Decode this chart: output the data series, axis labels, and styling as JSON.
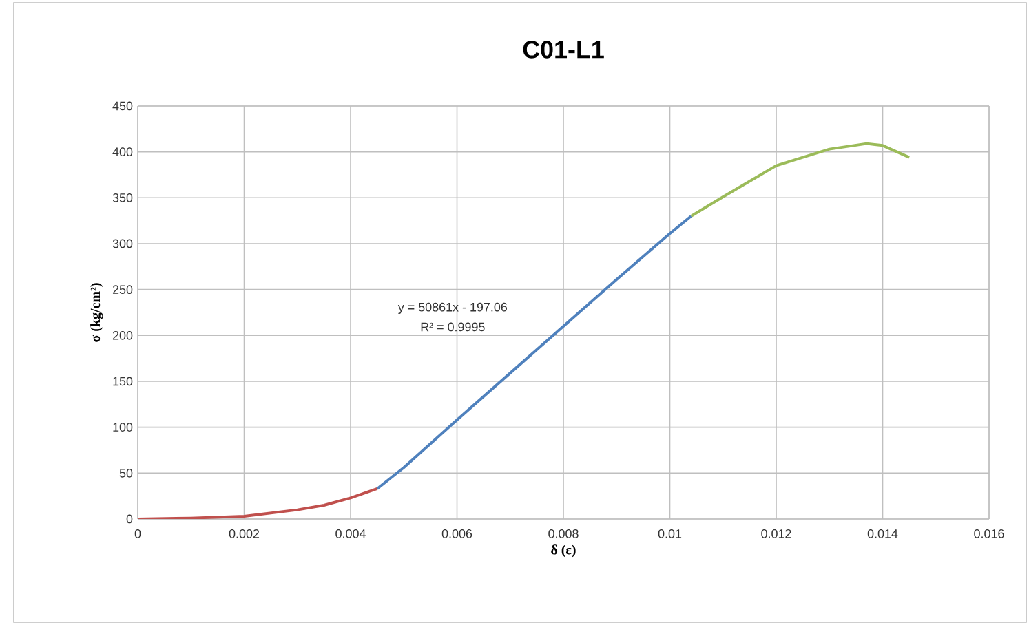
{
  "chart_data": {
    "type": "line",
    "title": "C01-L1",
    "xlabel": "δ (ε)",
    "ylabel": "σ (kg/cm²)",
    "annotations": [
      "y = 50861x - 197.06",
      "R² = 0.9995"
    ],
    "xlim": [
      0,
      0.016
    ],
    "ylim": [
      0,
      450
    ],
    "xticks": [
      0,
      0.002,
      0.004,
      0.006,
      0.008,
      0.01,
      0.012,
      0.014,
      0.016
    ],
    "yticks": [
      0,
      50,
      100,
      150,
      200,
      250,
      300,
      350,
      400,
      450
    ],
    "grid": true,
    "marker": "none",
    "line_style": "solid",
    "series": [
      {
        "color": "#c0504d",
        "x": [
          0,
          0.001,
          0.002,
          0.003,
          0.0035,
          0.004,
          0.0045
        ],
        "values": [
          0,
          1,
          3,
          10,
          15,
          23,
          33
        ]
      },
      {
        "color": "#4f81bd",
        "x": [
          0.0045,
          0.005,
          0.006,
          0.007,
          0.008,
          0.009,
          0.01,
          0.0104
        ],
        "values": [
          33,
          56,
          108,
          159,
          210,
          261,
          311,
          330
        ]
      },
      {
        "color": "#9bbb59",
        "x": [
          0.0104,
          0.011,
          0.012,
          0.013,
          0.0137,
          0.014,
          0.0145
        ],
        "values": [
          330,
          351,
          385,
          403,
          409,
          407,
          394
        ]
      }
    ]
  }
}
